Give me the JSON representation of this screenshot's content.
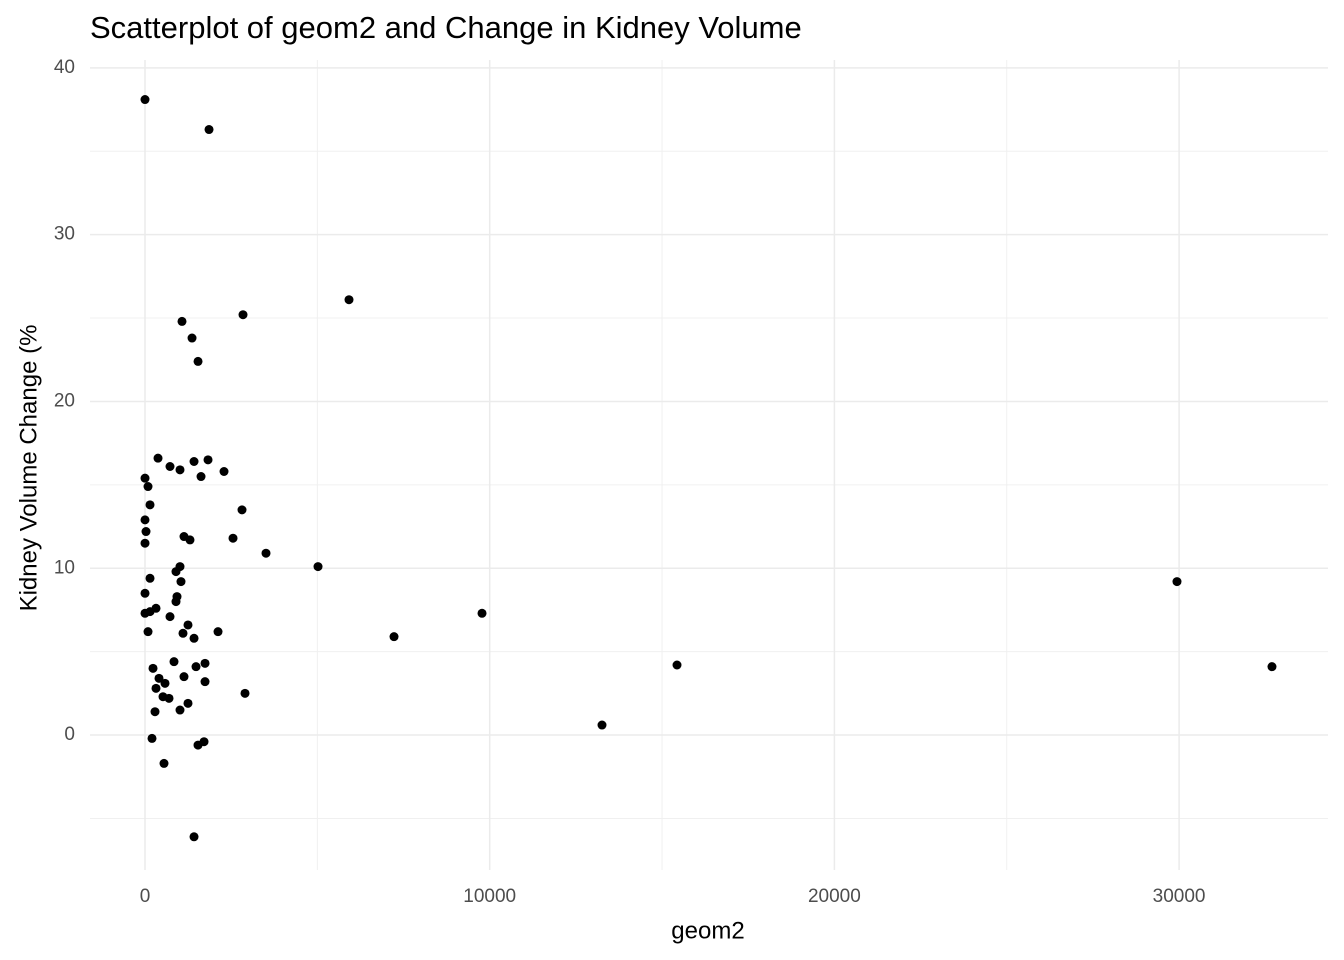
{
  "chart_data": {
    "type": "scatter",
    "title": "Scatterplot of geom2 and Change in Kidney Volume",
    "x_label": "geom2",
    "y_label": "Kidney Volume Change (%",
    "color": "#000000",
    "grid": true,
    "xlim": [
      -1596,
      34320
    ],
    "ylim": [
      -8.09,
      40.47
    ],
    "xticks": [
      0,
      10000,
      20000,
      30000
    ],
    "yticks": [
      0,
      10,
      20,
      30,
      40
    ],
    "x_minor_ticks": [
      5000,
      15000,
      25000
    ],
    "y_minor_ticks": [
      -5,
      5,
      15,
      25,
      35
    ],
    "x": [
      0,
      1857,
      5918,
      2843,
      1073,
      1364,
      1538,
      377,
      725,
      1015,
      1422,
      1828,
      2292,
      1625,
      0,
      87,
      145,
      2814,
      0,
      29,
      1131,
      1305,
      2553,
      0,
      3510,
      5019,
      1015,
      899,
      145,
      1044,
      29939,
      0,
      928,
      899,
      319,
      145,
      0,
      9777,
      725,
      1247,
      1102,
      87,
      2118,
      1422,
      7224,
      841,
      1741,
      1480,
      15434,
      32695,
      232,
      1131,
      406,
      580,
      1741,
      319,
      2901,
      522,
      696,
      1247,
      1015,
      290,
      13258,
      203,
      1712,
      1538,
      551,
      1422
    ],
    "y": [
      38.1,
      36.3,
      26.1,
      25.2,
      24.8,
      23.8,
      22.4,
      16.6,
      16.1,
      15.9,
      16.4,
      16.5,
      15.8,
      15.5,
      15.4,
      14.9,
      13.8,
      13.5,
      12.9,
      12.2,
      11.9,
      11.7,
      11.8,
      11.5,
      10.9,
      10.1,
      10.1,
      9.8,
      9.4,
      9.2,
      9.2,
      8.5,
      8.3,
      8.0,
      7.6,
      7.4,
      7.3,
      7.3,
      7.1,
      6.6,
      6.1,
      6.2,
      6.2,
      5.8,
      5.9,
      4.4,
      4.3,
      4.1,
      4.2,
      4.1,
      4.0,
      3.5,
      3.4,
      3.1,
      3.2,
      2.8,
      2.5,
      2.3,
      2.2,
      1.9,
      1.5,
      1.4,
      0.6,
      -0.2,
      -0.4,
      -0.6,
      -1.7,
      -6.1
    ]
  }
}
